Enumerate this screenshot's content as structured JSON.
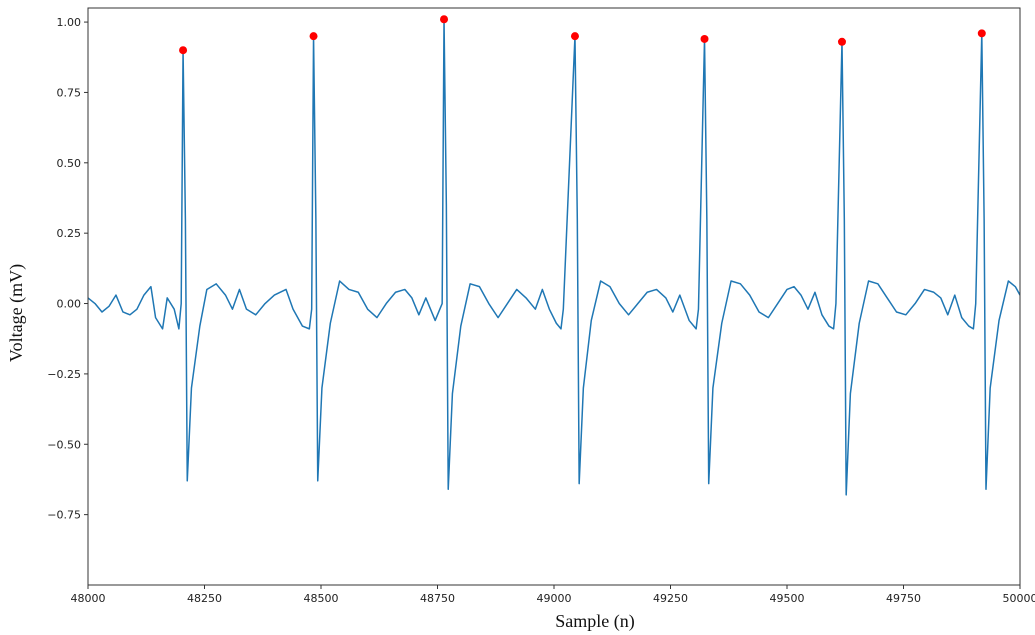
{
  "chart_data": {
    "type": "line",
    "title": "",
    "xlabel": "Sample (n)",
    "ylabel": "Voltage (mV)",
    "xlim": [
      48000,
      50000
    ],
    "ylim": [
      -1.0,
      1.05
    ],
    "grid": false,
    "legend": "none",
    "xticks": [
      48000,
      48250,
      48500,
      48750,
      49000,
      49250,
      49500,
      49750,
      50000
    ],
    "xtick_labels": [
      "48000",
      "48250",
      "48500",
      "48750",
      "49000",
      "49250",
      "49500",
      "49750",
      "50000"
    ],
    "yticks": [
      1.0,
      0.75,
      0.5,
      0.25,
      0.0,
      -0.25,
      -0.5,
      -0.75
    ],
    "ytick_labels": [
      "1.00",
      "0.75",
      "0.50",
      "0.25",
      "0.00",
      "−0.25",
      "−0.50",
      "−0.75"
    ],
    "series": [
      {
        "kind": "line",
        "color": "#1f77b4",
        "points": [
          [
            48000,
            0.02
          ],
          [
            48015,
            0.0
          ],
          [
            48030,
            -0.03
          ],
          [
            48045,
            -0.01
          ],
          [
            48060,
            0.03
          ],
          [
            48075,
            -0.03
          ],
          [
            48090,
            -0.04
          ],
          [
            48105,
            -0.02
          ],
          [
            48120,
            0.03
          ],
          [
            48135,
            0.06
          ],
          [
            48145,
            -0.05
          ],
          [
            48160,
            -0.09
          ],
          [
            48170,
            0.02
          ],
          [
            48185,
            -0.02
          ],
          [
            48195,
            -0.09
          ],
          [
            48200,
            0.0
          ],
          [
            48204,
            0.9
          ],
          [
            48209,
            0.3
          ],
          [
            48213,
            -0.63
          ],
          [
            48222,
            -0.3
          ],
          [
            48240,
            -0.08
          ],
          [
            48255,
            0.05
          ],
          [
            48275,
            0.07
          ],
          [
            48295,
            0.03
          ],
          [
            48310,
            -0.02
          ],
          [
            48325,
            0.05
          ],
          [
            48340,
            -0.02
          ],
          [
            48360,
            -0.04
          ],
          [
            48380,
            0.0
          ],
          [
            48400,
            0.03
          ],
          [
            48425,
            0.05
          ],
          [
            48440,
            -0.02
          ],
          [
            48460,
            -0.08
          ],
          [
            48475,
            -0.09
          ],
          [
            48480,
            -0.02
          ],
          [
            48484,
            0.95
          ],
          [
            48489,
            0.3
          ],
          [
            48493,
            -0.63
          ],
          [
            48502,
            -0.3
          ],
          [
            48520,
            -0.07
          ],
          [
            48540,
            0.08
          ],
          [
            48560,
            0.05
          ],
          [
            48580,
            0.04
          ],
          [
            48600,
            -0.02
          ],
          [
            48620,
            -0.05
          ],
          [
            48640,
            0.0
          ],
          [
            48660,
            0.04
          ],
          [
            48680,
            0.05
          ],
          [
            48695,
            0.02
          ],
          [
            48710,
            -0.04
          ],
          [
            48725,
            0.02
          ],
          [
            48745,
            -0.06
          ],
          [
            48760,
            0.0
          ],
          [
            48764,
            1.01
          ],
          [
            48769,
            0.35
          ],
          [
            48773,
            -0.66
          ],
          [
            48782,
            -0.32
          ],
          [
            48800,
            -0.08
          ],
          [
            48820,
            0.07
          ],
          [
            48840,
            0.06
          ],
          [
            48860,
            0.0
          ],
          [
            48880,
            -0.05
          ],
          [
            48900,
            0.0
          ],
          [
            48920,
            0.05
          ],
          [
            48940,
            0.02
          ],
          [
            48960,
            -0.02
          ],
          [
            48975,
            0.05
          ],
          [
            48990,
            -0.02
          ],
          [
            49005,
            -0.07
          ],
          [
            49015,
            -0.09
          ],
          [
            49020,
            -0.02
          ],
          [
            49045,
            0.95
          ],
          [
            49050,
            0.3
          ],
          [
            49054,
            -0.64
          ],
          [
            49063,
            -0.3
          ],
          [
            49080,
            -0.06
          ],
          [
            49100,
            0.08
          ],
          [
            49120,
            0.06
          ],
          [
            49140,
            0.0
          ],
          [
            49160,
            -0.04
          ],
          [
            49180,
            0.0
          ],
          [
            49200,
            0.04
          ],
          [
            49220,
            0.05
          ],
          [
            49240,
            0.02
          ],
          [
            49255,
            -0.03
          ],
          [
            49270,
            0.03
          ],
          [
            49290,
            -0.06
          ],
          [
            49305,
            -0.09
          ],
          [
            49310,
            -0.02
          ],
          [
            49323,
            0.94
          ],
          [
            49328,
            0.3
          ],
          [
            49332,
            -0.64
          ],
          [
            49341,
            -0.3
          ],
          [
            49360,
            -0.07
          ],
          [
            49380,
            0.08
          ],
          [
            49400,
            0.07
          ],
          [
            49420,
            0.03
          ],
          [
            49440,
            -0.03
          ],
          [
            49460,
            -0.05
          ],
          [
            49480,
            0.0
          ],
          [
            49500,
            0.05
          ],
          [
            49515,
            0.06
          ],
          [
            49530,
            0.03
          ],
          [
            49545,
            -0.02
          ],
          [
            49560,
            0.04
          ],
          [
            49575,
            -0.04
          ],
          [
            49590,
            -0.08
          ],
          [
            49600,
            -0.09
          ],
          [
            49605,
            0.0
          ],
          [
            49618,
            0.93
          ],
          [
            49623,
            0.3
          ],
          [
            49627,
            -0.68
          ],
          [
            49636,
            -0.32
          ],
          [
            49655,
            -0.07
          ],
          [
            49675,
            0.08
          ],
          [
            49695,
            0.07
          ],
          [
            49715,
            0.02
          ],
          [
            49735,
            -0.03
          ],
          [
            49755,
            -0.04
          ],
          [
            49775,
            0.0
          ],
          [
            49795,
            0.05
          ],
          [
            49815,
            0.04
          ],
          [
            49830,
            0.02
          ],
          [
            49845,
            -0.04
          ],
          [
            49860,
            0.03
          ],
          [
            49875,
            -0.05
          ],
          [
            49890,
            -0.08
          ],
          [
            49900,
            -0.09
          ],
          [
            49905,
            0.0
          ],
          [
            49918,
            0.96
          ],
          [
            49923,
            0.3
          ],
          [
            49927,
            -0.66
          ],
          [
            49936,
            -0.3
          ],
          [
            49955,
            -0.06
          ],
          [
            49975,
            0.08
          ],
          [
            49990,
            0.06
          ],
          [
            50000,
            0.03
          ]
        ]
      },
      {
        "kind": "scatter",
        "color": "#ff0000",
        "points": [
          [
            48204,
            0.9
          ],
          [
            48484,
            0.95
          ],
          [
            48764,
            1.01
          ],
          [
            49045,
            0.95
          ],
          [
            49323,
            0.94
          ],
          [
            49618,
            0.93
          ],
          [
            49918,
            0.96
          ]
        ]
      }
    ]
  }
}
